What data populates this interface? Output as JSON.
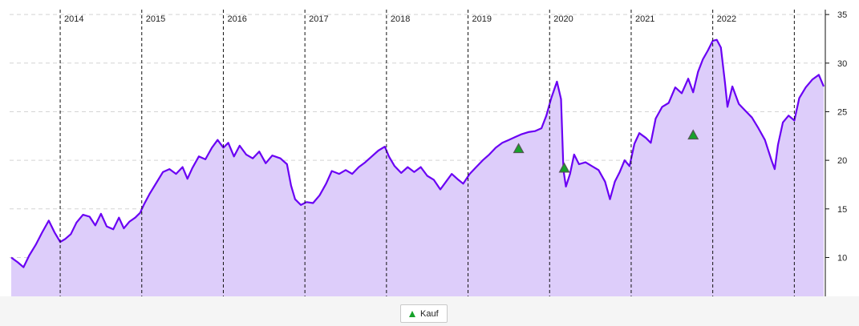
{
  "chart_data": {
    "type": "area",
    "x_type": "year",
    "xlim": [
      2013.38,
      2023.38
    ],
    "ylim": [
      6,
      36
    ],
    "y_ticks": [
      10,
      15,
      20,
      25,
      30,
      35
    ],
    "year_ticks": [
      2014,
      2015,
      2016,
      2017,
      2018,
      2019,
      2020,
      2021,
      2022,
      2023
    ],
    "year_labels": [
      "2014",
      "2015",
      "2016",
      "2017",
      "2018",
      "2019",
      "2020",
      "2021",
      "2022",
      ""
    ],
    "grid": true,
    "legend_position": "bottom-center",
    "series": [
      {
        "name": "",
        "color": "#6a00f4",
        "fill": "#ddcdfa",
        "points": [
          [
            2013.4,
            10.0
          ],
          [
            2013.48,
            9.5
          ],
          [
            2013.55,
            9.0
          ],
          [
            2013.62,
            10.2
          ],
          [
            2013.7,
            11.3
          ],
          [
            2013.78,
            12.6
          ],
          [
            2013.86,
            13.8
          ],
          [
            2013.93,
            12.6
          ],
          [
            2014.0,
            11.6
          ],
          [
            2014.06,
            11.9
          ],
          [
            2014.13,
            12.4
          ],
          [
            2014.2,
            13.6
          ],
          [
            2014.28,
            14.4
          ],
          [
            2014.36,
            14.2
          ],
          [
            2014.43,
            13.3
          ],
          [
            2014.5,
            14.5
          ],
          [
            2014.57,
            13.2
          ],
          [
            2014.65,
            12.9
          ],
          [
            2014.72,
            14.1
          ],
          [
            2014.78,
            13.0
          ],
          [
            2014.85,
            13.7
          ],
          [
            2014.92,
            14.1
          ],
          [
            2014.98,
            14.6
          ],
          [
            2015.03,
            15.5
          ],
          [
            2015.1,
            16.6
          ],
          [
            2015.18,
            17.7
          ],
          [
            2015.26,
            18.8
          ],
          [
            2015.34,
            19.1
          ],
          [
            2015.42,
            18.6
          ],
          [
            2015.5,
            19.3
          ],
          [
            2015.56,
            18.1
          ],
          [
            2015.62,
            19.2
          ],
          [
            2015.7,
            20.4
          ],
          [
            2015.78,
            20.1
          ],
          [
            2015.86,
            21.3
          ],
          [
            2015.93,
            22.1
          ],
          [
            2016.0,
            21.3
          ],
          [
            2016.06,
            21.8
          ],
          [
            2016.13,
            20.4
          ],
          [
            2016.2,
            21.5
          ],
          [
            2016.28,
            20.6
          ],
          [
            2016.36,
            20.2
          ],
          [
            2016.44,
            20.9
          ],
          [
            2016.52,
            19.7
          ],
          [
            2016.6,
            20.5
          ],
          [
            2016.7,
            20.2
          ],
          [
            2016.78,
            19.6
          ],
          [
            2016.83,
            17.4
          ],
          [
            2016.88,
            16.0
          ],
          [
            2016.95,
            15.4
          ],
          [
            2017.02,
            15.7
          ],
          [
            2017.1,
            15.6
          ],
          [
            2017.18,
            16.4
          ],
          [
            2017.26,
            17.6
          ],
          [
            2017.33,
            18.9
          ],
          [
            2017.42,
            18.6
          ],
          [
            2017.5,
            19.0
          ],
          [
            2017.58,
            18.6
          ],
          [
            2017.66,
            19.3
          ],
          [
            2017.74,
            19.8
          ],
          [
            2017.82,
            20.4
          ],
          [
            2017.9,
            21.0
          ],
          [
            2017.98,
            21.4
          ],
          [
            2018.03,
            20.4
          ],
          [
            2018.1,
            19.4
          ],
          [
            2018.18,
            18.7
          ],
          [
            2018.26,
            19.3
          ],
          [
            2018.34,
            18.8
          ],
          [
            2018.42,
            19.3
          ],
          [
            2018.5,
            18.4
          ],
          [
            2018.58,
            18.0
          ],
          [
            2018.66,
            17.0
          ],
          [
            2018.73,
            17.8
          ],
          [
            2018.8,
            18.6
          ],
          [
            2018.88,
            18.0
          ],
          [
            2018.94,
            17.6
          ],
          [
            2019.02,
            18.6
          ],
          [
            2019.1,
            19.3
          ],
          [
            2019.18,
            20.0
          ],
          [
            2019.26,
            20.6
          ],
          [
            2019.34,
            21.3
          ],
          [
            2019.42,
            21.8
          ],
          [
            2019.5,
            22.1
          ],
          [
            2019.58,
            22.4
          ],
          [
            2019.66,
            22.7
          ],
          [
            2019.74,
            22.9
          ],
          [
            2019.82,
            23.0
          ],
          [
            2019.9,
            23.3
          ],
          [
            2019.96,
            24.6
          ],
          [
            2020.02,
            26.4
          ],
          [
            2020.09,
            28.1
          ],
          [
            2020.14,
            26.3
          ],
          [
            2020.17,
            19.0
          ],
          [
            2020.2,
            17.3
          ],
          [
            2020.25,
            18.6
          ],
          [
            2020.3,
            20.6
          ],
          [
            2020.36,
            19.6
          ],
          [
            2020.44,
            19.8
          ],
          [
            2020.52,
            19.4
          ],
          [
            2020.6,
            19.0
          ],
          [
            2020.68,
            17.8
          ],
          [
            2020.74,
            16.0
          ],
          [
            2020.8,
            17.8
          ],
          [
            2020.86,
            18.8
          ],
          [
            2020.92,
            20.0
          ],
          [
            2020.98,
            19.4
          ],
          [
            2021.04,
            21.7
          ],
          [
            2021.1,
            22.8
          ],
          [
            2021.18,
            22.3
          ],
          [
            2021.24,
            21.8
          ],
          [
            2021.3,
            24.3
          ],
          [
            2021.38,
            25.5
          ],
          [
            2021.46,
            25.9
          ],
          [
            2021.54,
            27.5
          ],
          [
            2021.62,
            26.9
          ],
          [
            2021.7,
            28.4
          ],
          [
            2021.76,
            27.0
          ],
          [
            2021.82,
            29.1
          ],
          [
            2021.88,
            30.4
          ],
          [
            2021.94,
            31.3
          ],
          [
            2022.0,
            32.3
          ],
          [
            2022.05,
            32.4
          ],
          [
            2022.1,
            31.6
          ],
          [
            2022.15,
            28.0
          ],
          [
            2022.18,
            25.5
          ],
          [
            2022.24,
            27.6
          ],
          [
            2022.32,
            25.8
          ],
          [
            2022.4,
            25.1
          ],
          [
            2022.48,
            24.4
          ],
          [
            2022.56,
            23.3
          ],
          [
            2022.64,
            22.1
          ],
          [
            2022.72,
            20.0
          ],
          [
            2022.76,
            19.1
          ],
          [
            2022.8,
            21.6
          ],
          [
            2022.86,
            23.9
          ],
          [
            2022.93,
            24.6
          ],
          [
            2023.0,
            24.1
          ],
          [
            2023.06,
            26.4
          ],
          [
            2023.14,
            27.5
          ],
          [
            2023.22,
            28.3
          ],
          [
            2023.3,
            28.8
          ],
          [
            2023.36,
            27.6
          ]
        ]
      }
    ],
    "markers": [
      {
        "x": 2019.62,
        "y": 21.2,
        "type": "Kauf"
      },
      {
        "x": 2020.18,
        "y": 19.2,
        "type": "Kauf"
      },
      {
        "x": 2021.76,
        "y": 22.6,
        "type": "Kauf"
      }
    ]
  },
  "legend": {
    "kauf_label": "Kauf",
    "kauf_color": "#17a22a"
  }
}
